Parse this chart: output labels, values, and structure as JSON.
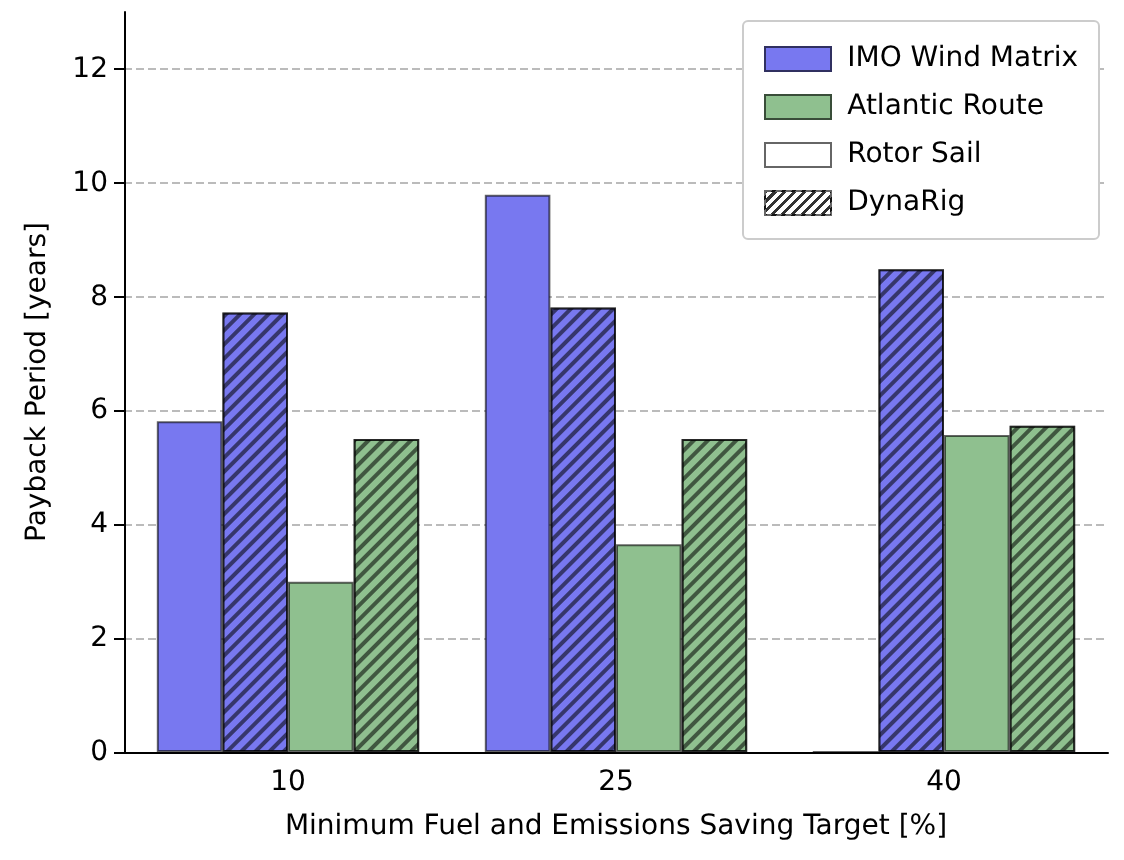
{
  "chart_data": {
    "type": "bar",
    "xlabel": "Minimum Fuel and Emissions Saving Target [%]",
    "ylabel": "Payback Period [years]",
    "categories": [
      "10",
      "25",
      "40"
    ],
    "series": [
      {
        "color": "#7878f0",
        "values": [
          5.81,
          9.79,
          0
        ]
      },
      {
        "color": "#7878f0",
        "values": [
          7.72,
          7.81,
          8.48
        ]
      },
      {
        "color": "#8fc08f",
        "values": [
          2.99,
          3.65,
          5.57
        ]
      },
      {
        "color": "#8fc08f",
        "values": [
          5.5,
          5.5,
          5.73
        ]
      }
    ],
    "annotations": [
      "IMO Wind Matrix",
      "Atlantic Route",
      "Rotor Sail",
      "DynaRig"
    ],
    "ylim": [
      0,
      13
    ],
    "yticks": [
      0,
      2,
      4,
      6,
      8,
      10,
      12
    ],
    "grid": "y"
  }
}
